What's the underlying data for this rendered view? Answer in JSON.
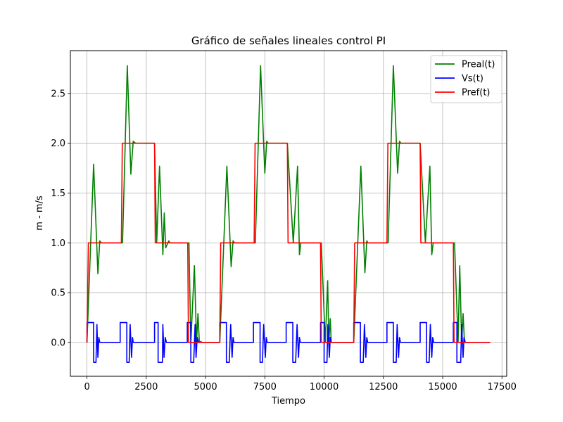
{
  "chart_data": {
    "type": "line",
    "title": "Gráfico de señales lineales control PI",
    "xlabel": "Tiempo",
    "ylabel": "m - m/s",
    "xlim": [
      -700,
      17700
    ],
    "ylim": [
      -0.34,
      2.93
    ],
    "x_ticks": [
      0,
      2500,
      5000,
      7500,
      10000,
      12500,
      15000,
      17500
    ],
    "y_ticks": [
      0.0,
      0.5,
      1.0,
      1.5,
      2.0,
      2.5
    ],
    "x_tick_labels": [
      "0",
      "2500",
      "5000",
      "7500",
      "10000",
      "12500",
      "15000",
      "17500"
    ],
    "y_tick_labels": [
      "0.0",
      "0.5",
      "1.0",
      "1.5",
      "2.0",
      "2.5"
    ],
    "grid": true,
    "legend_position": "top-right",
    "series": [
      {
        "name": "Preal(t)",
        "color": "#008000",
        "x": [
          0,
          280,
          460,
          540,
          600,
          1500,
          1700,
          1850,
          1950,
          2050,
          2850,
          2940,
          3060,
          3200,
          3260,
          3320,
          3450,
          3500,
          4300,
          4380,
          4530,
          4620,
          4680,
          4740,
          4800,
          4850,
          5600,
          5900,
          6080,
          6160,
          6220,
          7100,
          7320,
          7500,
          7580,
          7640,
          8450,
          8700,
          8880,
          8960,
          9020,
          9880,
          10050,
          10150,
          10200,
          10260,
          10300,
          10400,
          11250,
          11550,
          11720,
          11800,
          11850,
          12700,
          12920,
          13100,
          13180,
          13240,
          14050,
          14270,
          14460,
          14540,
          14600,
          15500,
          15650,
          15720,
          15800,
          15860,
          15920,
          16000,
          16100
        ],
        "y": [
          0,
          1.79,
          0.69,
          1.02,
          1.0,
          1.0,
          2.78,
          1.69,
          2.02,
          2.0,
          2.0,
          1.0,
          1.77,
          0.88,
          1.3,
          0.95,
          1.02,
          1.0,
          1.0,
          0.0,
          0.77,
          0.0,
          0.29,
          0.0,
          0.01,
          0.0,
          0.0,
          1.77,
          0.76,
          1.02,
          1.0,
          1.0,
          2.78,
          1.7,
          2.02,
          2.0,
          2.0,
          1.0,
          1.77,
          0.88,
          1.0,
          1.0,
          0.0,
          0.62,
          0.0,
          0.24,
          0.0,
          0.0,
          0.0,
          1.77,
          0.7,
          1.02,
          1.0,
          1.0,
          2.78,
          1.7,
          2.02,
          2.0,
          2.0,
          1.0,
          1.77,
          0.88,
          1.0,
          1.0,
          0.0,
          0.77,
          0.0,
          0.29,
          0.0,
          0.0,
          0.0
        ]
      },
      {
        "name": "Vs(t)",
        "color": "#0000ff",
        "x": [
          0,
          0,
          280,
          280,
          380,
          420,
          460,
          500,
          540,
          600,
          1400,
          1400,
          1680,
          1680,
          1780,
          1820,
          1880,
          1920,
          1950,
          2000,
          2850,
          2850,
          3000,
          3000,
          3180,
          3200,
          3250,
          3300,
          3350,
          3450,
          4230,
          4230,
          4380,
          4380,
          4500,
          4560,
          4600,
          4650,
          4700,
          4750,
          4850,
          5600,
          5600,
          5880,
          5880,
          6000,
          6060,
          6120,
          6160,
          6200,
          6260,
          7020,
          7020,
          7300,
          7300,
          7400,
          7450,
          7520,
          7560,
          7600,
          7660,
          8400,
          8400,
          8680,
          8680,
          8800,
          8860,
          8920,
          8960,
          9000,
          9060,
          9850,
          9850,
          10000,
          10000,
          10120,
          10160,
          10220,
          10260,
          10300,
          10400,
          11250,
          11250,
          11530,
          11530,
          11650,
          11700,
          11760,
          11800,
          11840,
          11900,
          12650,
          12650,
          12920,
          12920,
          13040,
          13080,
          13140,
          13180,
          13220,
          13280,
          14050,
          14050,
          14320,
          14320,
          14430,
          14480,
          14540,
          14580,
          14620,
          14680,
          15450,
          15450,
          15600,
          15600,
          15760,
          15800,
          15860,
          15900,
          15950,
          16000,
          16100,
          17000
        ],
        "y": [
          0,
          0.2,
          0.2,
          -0.2,
          -0.2,
          0.18,
          -0.15,
          0.05,
          0.0,
          0.0,
          0.0,
          0.2,
          0.2,
          -0.2,
          -0.2,
          0.18,
          -0.15,
          0.05,
          0.0,
          0.0,
          0.0,
          0.2,
          0.2,
          -0.2,
          -0.2,
          0.18,
          -0.15,
          0.05,
          0.0,
          0.0,
          0.0,
          0.2,
          0.2,
          -0.2,
          -0.2,
          0.18,
          -0.15,
          0.05,
          0.0,
          0.0,
          0.0,
          0.0,
          0.2,
          0.2,
          -0.2,
          -0.2,
          0.18,
          -0.15,
          0.05,
          0.0,
          0.0,
          0.0,
          0.2,
          0.2,
          -0.2,
          -0.2,
          0.18,
          -0.15,
          0.05,
          0.0,
          0.0,
          0.0,
          0.2,
          0.2,
          -0.2,
          -0.2,
          0.18,
          -0.15,
          0.05,
          0.0,
          0.0,
          0.0,
          0.2,
          0.2,
          -0.2,
          -0.2,
          0.18,
          -0.15,
          0.05,
          0.0,
          0.0,
          0.0,
          0.2,
          0.2,
          -0.2,
          -0.2,
          0.18,
          -0.15,
          0.05,
          0.0,
          0.0,
          0.0,
          0.2,
          0.2,
          -0.2,
          -0.2,
          0.18,
          -0.15,
          0.05,
          0.0,
          0.0,
          0.0,
          0.2,
          0.2,
          -0.2,
          -0.2,
          0.18,
          -0.15,
          0.05,
          0.0,
          0.0,
          0.0,
          0.2,
          0.2,
          -0.2,
          -0.2,
          0.18,
          -0.15,
          0.05,
          0.0,
          0.0,
          0.0,
          0.0
        ]
      },
      {
        "name": "Pref(t)",
        "color": "#ff0000",
        "x": [
          0,
          60,
          1450,
          1490,
          2850,
          2880,
          4250,
          4280,
          5600,
          5640,
          7050,
          7090,
          8450,
          8480,
          9850,
          9880,
          11250,
          11290,
          12650,
          12690,
          14050,
          14080,
          15450,
          15480,
          17000
        ],
        "y": [
          0,
          1,
          1,
          2,
          2,
          1,
          1,
          0,
          0,
          1,
          1,
          2,
          2,
          1,
          1,
          0,
          0,
          1,
          1,
          2,
          2,
          1,
          1,
          0,
          0
        ]
      }
    ]
  }
}
